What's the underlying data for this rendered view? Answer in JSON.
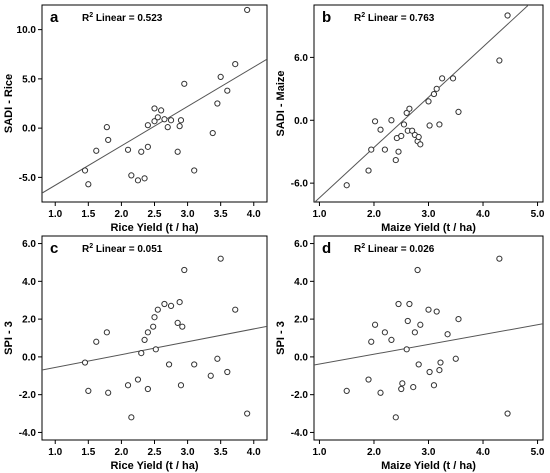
{
  "chart_data": [
    {
      "type": "scatter",
      "panel_label": "a",
      "annotation": {
        "prefix": "R",
        "sup": "2",
        "text": " Linear = 0.523"
      },
      "xlabel": "Rice Yield (t / ha)",
      "ylabel": "SADI - Rice",
      "xlim": [
        0.8,
        4.2
      ],
      "ylim": [
        -7.5,
        12.5
      ],
      "xticks": [
        1.0,
        1.5,
        2.0,
        2.5,
        3.0,
        3.5,
        4.0
      ],
      "xtick_labels": [
        "1.0",
        "1.5",
        "2.0",
        "2.5",
        "3.0",
        "3.5",
        "4.0"
      ],
      "yticks": [
        -5.0,
        0.0,
        5.0,
        10.0
      ],
      "ytick_labels": [
        "-5.0",
        "0.0",
        "5.0",
        "10.0"
      ],
      "fit": {
        "intercept": -9.8,
        "slope": 4.0
      },
      "points": [
        {
          "x": 1.45,
          "y": -4.3
        },
        {
          "x": 1.5,
          "y": -5.7
        },
        {
          "x": 1.62,
          "y": -2.3
        },
        {
          "x": 1.78,
          "y": 0.1
        },
        {
          "x": 1.8,
          "y": -1.2
        },
        {
          "x": 2.1,
          "y": -2.2
        },
        {
          "x": 2.15,
          "y": -4.8
        },
        {
          "x": 2.25,
          "y": -5.3
        },
        {
          "x": 2.3,
          "y": -2.4
        },
        {
          "x": 2.35,
          "y": -5.1
        },
        {
          "x": 2.4,
          "y": -1.9
        },
        {
          "x": 2.4,
          "y": 0.3
        },
        {
          "x": 2.5,
          "y": 0.7
        },
        {
          "x": 2.5,
          "y": 2.0
        },
        {
          "x": 2.55,
          "y": 1.1
        },
        {
          "x": 2.6,
          "y": 1.8
        },
        {
          "x": 2.65,
          "y": 0.9
        },
        {
          "x": 2.7,
          "y": 0.1
        },
        {
          "x": 2.75,
          "y": 0.8
        },
        {
          "x": 2.85,
          "y": -2.4
        },
        {
          "x": 2.88,
          "y": 0.2
        },
        {
          "x": 2.9,
          "y": 0.8
        },
        {
          "x": 2.95,
          "y": 4.5
        },
        {
          "x": 3.1,
          "y": -4.3
        },
        {
          "x": 3.38,
          "y": -0.5
        },
        {
          "x": 3.45,
          "y": 2.5
        },
        {
          "x": 3.5,
          "y": 5.2
        },
        {
          "x": 3.6,
          "y": 3.8
        },
        {
          "x": 3.72,
          "y": 6.5
        },
        {
          "x": 3.9,
          "y": 12.0
        }
      ]
    },
    {
      "type": "scatter",
      "panel_label": "b",
      "annotation": {
        "prefix": "R",
        "sup": "2",
        "text": " Linear = 0.763"
      },
      "xlabel": "Maize Yield (t / ha)",
      "ylabel": "SADI - Maize",
      "xlim": [
        0.9,
        5.1
      ],
      "ylim": [
        -7.8,
        11.0
      ],
      "xticks": [
        1.0,
        2.0,
        3.0,
        4.0,
        5.0
      ],
      "xtick_labels": [
        "1.0",
        "2.0",
        "3.0",
        "4.0",
        "5.0"
      ],
      "yticks": [
        -6.0,
        0.0,
        6.0
      ],
      "ytick_labels": [
        "-6.0",
        "0.0",
        "6.0"
      ],
      "fit": {
        "intercept": -12.2,
        "slope": 4.8
      },
      "points": [
        {
          "x": 1.5,
          "y": -6.2
        },
        {
          "x": 1.9,
          "y": -4.8
        },
        {
          "x": 1.95,
          "y": -2.8
        },
        {
          "x": 2.02,
          "y": -0.1
        },
        {
          "x": 2.12,
          "y": -0.9
        },
        {
          "x": 2.2,
          "y": -2.8
        },
        {
          "x": 2.32,
          "y": 0.0
        },
        {
          "x": 2.4,
          "y": -3.8
        },
        {
          "x": 2.42,
          "y": -1.7
        },
        {
          "x": 2.45,
          "y": -3.0
        },
        {
          "x": 2.5,
          "y": -1.5
        },
        {
          "x": 2.55,
          "y": -0.4
        },
        {
          "x": 2.6,
          "y": 0.7
        },
        {
          "x": 2.62,
          "y": -1.0
        },
        {
          "x": 2.65,
          "y": 1.1
        },
        {
          "x": 2.7,
          "y": -1.0
        },
        {
          "x": 2.75,
          "y": -1.4
        },
        {
          "x": 2.8,
          "y": -2.0
        },
        {
          "x": 2.82,
          "y": -1.6
        },
        {
          "x": 2.85,
          "y": -2.3
        },
        {
          "x": 3.0,
          "y": 1.8
        },
        {
          "x": 3.02,
          "y": -0.5
        },
        {
          "x": 3.1,
          "y": 2.5
        },
        {
          "x": 3.15,
          "y": 3.0
        },
        {
          "x": 3.2,
          "y": -0.4
        },
        {
          "x": 3.25,
          "y": 4.0
        },
        {
          "x": 3.45,
          "y": 4.0
        },
        {
          "x": 3.55,
          "y": 0.8
        },
        {
          "x": 4.3,
          "y": 5.7
        },
        {
          "x": 4.45,
          "y": 10.0
        }
      ]
    },
    {
      "type": "scatter",
      "panel_label": "c",
      "annotation": {
        "prefix": "R",
        "sup": "2",
        "text": " Linear = 0.051"
      },
      "xlabel": "Rice Yield (t / ha)",
      "ylabel": "SPI - 3",
      "xlim": [
        0.8,
        4.2
      ],
      "ylim": [
        -4.4,
        6.4
      ],
      "xticks": [
        1.0,
        1.5,
        2.0,
        2.5,
        3.0,
        3.5,
        4.0
      ],
      "xtick_labels": [
        "1.0",
        "1.5",
        "2.0",
        "2.5",
        "3.0",
        "3.5",
        "4.0"
      ],
      "yticks": [
        -4.0,
        -2.0,
        0.0,
        2.0,
        4.0,
        6.0
      ],
      "ytick_labels": [
        "-4.0",
        "-2.0",
        "0.0",
        "2.0",
        "4.0",
        "6.0"
      ],
      "fit": {
        "intercept": -1.24,
        "slope": 0.68
      },
      "points": [
        {
          "x": 1.45,
          "y": -0.3
        },
        {
          "x": 1.5,
          "y": -1.8
        },
        {
          "x": 1.62,
          "y": 0.8
        },
        {
          "x": 1.78,
          "y": 1.3
        },
        {
          "x": 1.8,
          "y": -1.9
        },
        {
          "x": 2.1,
          "y": -1.5
        },
        {
          "x": 2.15,
          "y": -3.2
        },
        {
          "x": 2.25,
          "y": -1.2
        },
        {
          "x": 2.3,
          "y": 0.2
        },
        {
          "x": 2.35,
          "y": 0.9
        },
        {
          "x": 2.4,
          "y": -1.7
        },
        {
          "x": 2.4,
          "y": 1.3
        },
        {
          "x": 2.48,
          "y": 1.6
        },
        {
          "x": 2.5,
          "y": 2.1
        },
        {
          "x": 2.52,
          "y": 0.4
        },
        {
          "x": 2.55,
          "y": 2.5
        },
        {
          "x": 2.65,
          "y": 2.8
        },
        {
          "x": 2.72,
          "y": -0.4
        },
        {
          "x": 2.75,
          "y": 2.7
        },
        {
          "x": 2.85,
          "y": 1.8
        },
        {
          "x": 2.88,
          "y": 2.9
        },
        {
          "x": 2.9,
          "y": -1.5
        },
        {
          "x": 2.92,
          "y": 1.6
        },
        {
          "x": 2.95,
          "y": 4.6
        },
        {
          "x": 3.1,
          "y": -0.4
        },
        {
          "x": 3.35,
          "y": -1.0
        },
        {
          "x": 3.45,
          "y": -0.1
        },
        {
          "x": 3.5,
          "y": 5.2
        },
        {
          "x": 3.6,
          "y": -0.8
        },
        {
          "x": 3.72,
          "y": 2.5
        },
        {
          "x": 3.9,
          "y": -3.0
        }
      ]
    },
    {
      "type": "scatter",
      "panel_label": "d",
      "annotation": {
        "prefix": "R",
        "sup": "2",
        "text": " Linear = 0.026"
      },
      "xlabel": "Maize Yield (t / ha)",
      "ylabel": "SPI - 3",
      "xlim": [
        0.9,
        5.1
      ],
      "ylim": [
        -4.4,
        6.4
      ],
      "xticks": [
        1.0,
        2.0,
        3.0,
        4.0,
        5.0
      ],
      "xtick_labels": [
        "1.0",
        "2.0",
        "3.0",
        "4.0",
        "5.0"
      ],
      "yticks": [
        -4.0,
        -2.0,
        0.0,
        2.0,
        4.0,
        6.0
      ],
      "ytick_labels": [
        "-4.0",
        "-2.0",
        "0.0",
        "2.0",
        "4.0",
        "6.0"
      ],
      "fit": {
        "intercept": -0.9,
        "slope": 0.52
      },
      "points": [
        {
          "x": 1.5,
          "y": -1.8
        },
        {
          "x": 1.9,
          "y": -1.2
        },
        {
          "x": 1.95,
          "y": 0.8
        },
        {
          "x": 2.02,
          "y": 1.7
        },
        {
          "x": 2.12,
          "y": -1.9
        },
        {
          "x": 2.2,
          "y": 1.3
        },
        {
          "x": 2.32,
          "y": 0.9
        },
        {
          "x": 2.4,
          "y": -3.2
        },
        {
          "x": 2.45,
          "y": 2.8
        },
        {
          "x": 2.5,
          "y": -1.7
        },
        {
          "x": 2.52,
          "y": -1.4
        },
        {
          "x": 2.6,
          "y": 0.4
        },
        {
          "x": 2.62,
          "y": 1.9
        },
        {
          "x": 2.65,
          "y": 2.8
        },
        {
          "x": 2.72,
          "y": -1.6
        },
        {
          "x": 2.75,
          "y": 1.3
        },
        {
          "x": 2.8,
          "y": 4.6
        },
        {
          "x": 2.82,
          "y": -0.4
        },
        {
          "x": 2.85,
          "y": 1.7
        },
        {
          "x": 3.0,
          "y": 2.5
        },
        {
          "x": 3.02,
          "y": -0.8
        },
        {
          "x": 3.1,
          "y": -1.5
        },
        {
          "x": 3.15,
          "y": 2.4
        },
        {
          "x": 3.2,
          "y": -0.7
        },
        {
          "x": 3.22,
          "y": -0.3
        },
        {
          "x": 3.35,
          "y": 1.2
        },
        {
          "x": 3.5,
          "y": -0.1
        },
        {
          "x": 3.55,
          "y": 2.0
        },
        {
          "x": 4.3,
          "y": 5.2
        },
        {
          "x": 4.45,
          "y": -3.0
        }
      ]
    }
  ]
}
